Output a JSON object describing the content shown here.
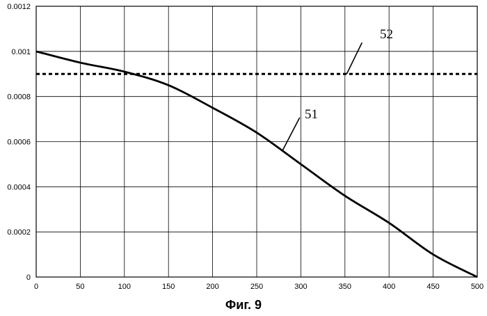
{
  "chart_data": {
    "type": "line",
    "title": "",
    "xlabel": "",
    "ylabel": "",
    "xlim": [
      0,
      500
    ],
    "ylim": [
      0,
      0.0012
    ],
    "grid": true,
    "x_ticks": [
      0,
      50,
      100,
      150,
      200,
      250,
      300,
      350,
      400,
      450,
      500
    ],
    "y_ticks": [
      0,
      0.0002,
      0.0004,
      0.0006,
      0.0008,
      0.001,
      0.0012
    ],
    "x_tick_labels": [
      "0",
      "50",
      "100",
      "150",
      "200",
      "250",
      "300",
      "350",
      "400",
      "450",
      "500"
    ],
    "y_tick_labels": [
      "0",
      "0.0002",
      "0.0004",
      "0.0006",
      "0.0008",
      "0.001",
      "0.0012"
    ],
    "series": [
      {
        "name": "51",
        "style": "solid",
        "color": "#000000",
        "x": [
          0,
          50,
          100,
          150,
          200,
          250,
          300,
          350,
          400,
          450,
          500
        ],
        "y": [
          0.001,
          0.00095,
          0.00091,
          0.00085,
          0.00075,
          0.00064,
          0.0005,
          0.00036,
          0.00024,
          0.0001,
          0
        ]
      },
      {
        "name": "52",
        "style": "dashed",
        "color": "#000000",
        "x": [
          0,
          500
        ],
        "y": [
          0.0009,
          0.0009
        ]
      }
    ],
    "annotations": [
      {
        "text": "51",
        "series": "51"
      },
      {
        "text": "52",
        "series": "52"
      }
    ]
  },
  "caption": "Фиг. 9"
}
